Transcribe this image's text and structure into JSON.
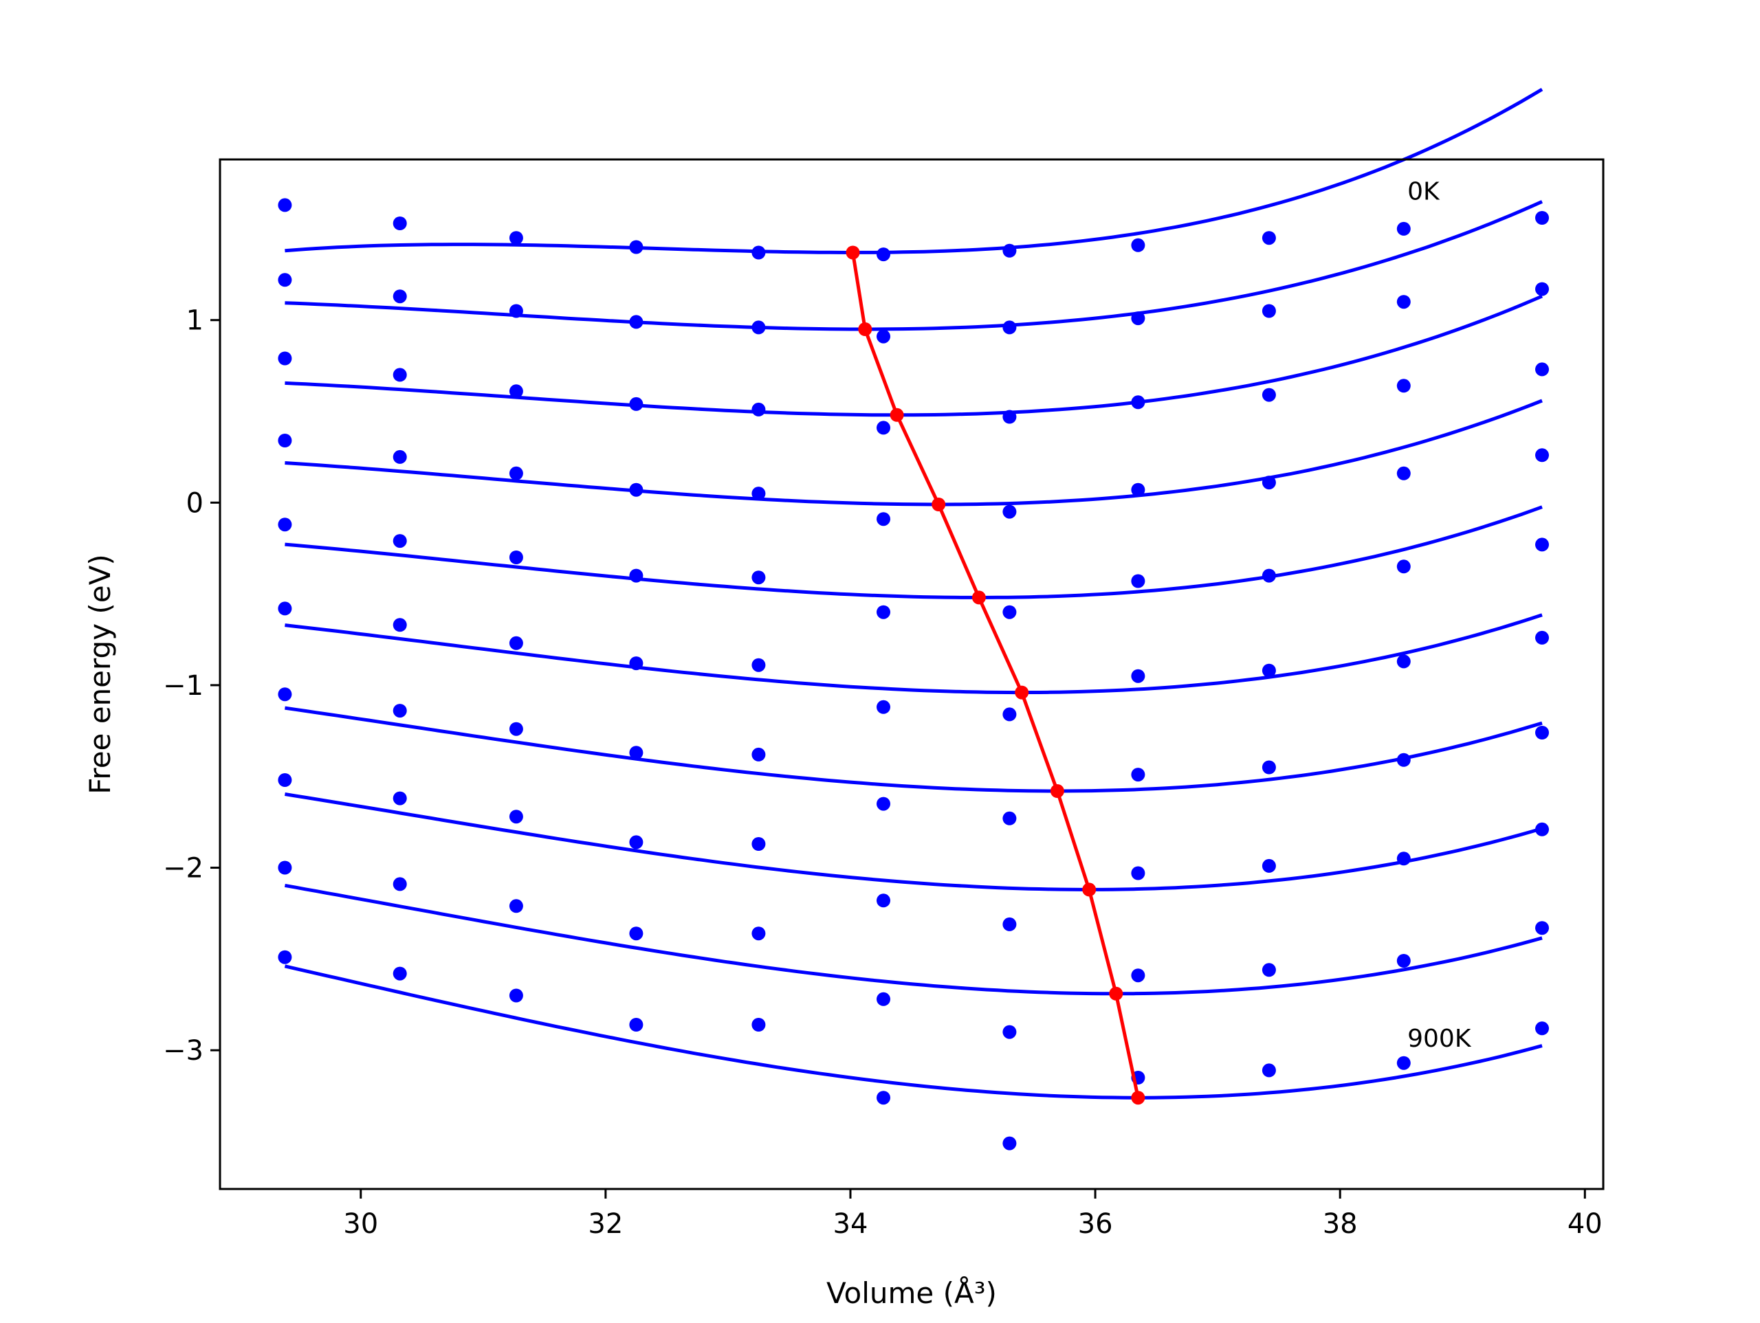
{
  "chart_data": {
    "type": "scatter",
    "xlabel": "Volume (Å³)",
    "ylabel": "Free energy (eV)",
    "xlim": [
      28.85,
      40.15
    ],
    "ylim": [
      -3.76,
      1.88
    ],
    "xticks": [
      30,
      32,
      34,
      36,
      38,
      40
    ],
    "yticks": [
      1,
      0,
      -1,
      -2,
      -3
    ],
    "xtick_labels": [
      "30",
      "32",
      "34",
      "36",
      "38",
      "40"
    ],
    "ytick_labels": [
      "1",
      "0",
      "−1",
      "−2",
      "−3"
    ],
    "grid": false,
    "annotations": [
      {
        "text": "0K",
        "x": 38.55,
        "y": 1.66
      },
      {
        "text": "900K",
        "x": 38.55,
        "y": -2.98
      }
    ],
    "colors": {
      "data": "#0000ff",
      "minimum": "#ff0000"
    },
    "x": [
      29.38,
      30.32,
      31.27,
      32.25,
      33.25,
      34.27,
      35.3,
      36.35,
      37.42,
      38.52,
      39.65
    ],
    "series": [
      {
        "values": [
          1.63,
          1.53,
          1.45,
          1.4,
          1.37,
          1.36,
          1.38,
          1.41,
          1.45,
          1.5,
          1.56
        ],
        "fit": {
          "vmin": 34.02,
          "emin": 1.37,
          "a": 0.013,
          "b": 0.0027
        }
      },
      {
        "values": [
          1.22,
          1.13,
          1.05,
          0.99,
          0.96,
          0.91,
          0.96,
          1.01,
          1.05,
          1.1,
          1.17
        ],
        "fit": {
          "vmin": 34.12,
          "emin": 0.95,
          "a": 0.014,
          "b": 0.0016
        }
      },
      {
        "values": [
          0.79,
          0.7,
          0.61,
          0.54,
          0.51,
          0.41,
          0.47,
          0.55,
          0.59,
          0.64,
          0.73
        ],
        "fit": {
          "vmin": 34.38,
          "emin": 0.48,
          "a": 0.015,
          "b": 0.0016
        }
      },
      {
        "values": [
          0.34,
          0.25,
          0.16,
          0.07,
          0.05,
          -0.09,
          -0.05,
          0.07,
          0.11,
          0.16,
          0.26
        ],
        "fit": {
          "vmin": 34.72,
          "emin": -0.01,
          "a": 0.016,
          "b": 0.0015
        }
      },
      {
        "values": [
          -0.12,
          -0.21,
          -0.3,
          -0.4,
          -0.41,
          -0.6,
          -0.6,
          -0.43,
          -0.4,
          -0.35,
          -0.23
        ],
        "fit": {
          "vmin": 35.05,
          "emin": -0.52,
          "a": 0.017,
          "b": 0.0014
        }
      },
      {
        "values": [
          -0.58,
          -0.67,
          -0.77,
          -0.88,
          -0.89,
          -1.12,
          -1.16,
          -0.95,
          -0.92,
          -0.87,
          -0.74
        ],
        "fit": {
          "vmin": 35.4,
          "emin": -1.04,
          "a": 0.018,
          "b": 0.0013
        }
      },
      {
        "values": [
          -1.05,
          -1.14,
          -1.24,
          -1.37,
          -1.38,
          -1.65,
          -1.73,
          -1.49,
          -1.45,
          -1.41,
          -1.26
        ],
        "fit": {
          "vmin": 35.69,
          "emin": -1.58,
          "a": 0.019,
          "b": 0.0012
        }
      },
      {
        "values": [
          -1.52,
          -1.62,
          -1.72,
          -1.86,
          -1.87,
          -2.18,
          -2.31,
          -2.03,
          -1.99,
          -1.95,
          -1.79
        ],
        "fit": {
          "vmin": 35.95,
          "emin": -2.12,
          "a": 0.02,
          "b": 0.0012
        }
      },
      {
        "values": [
          -2.0,
          -2.09,
          -2.21,
          -2.36,
          -2.36,
          -2.72,
          -2.9,
          -2.59,
          -2.56,
          -2.51,
          -2.33
        ],
        "fit": {
          "vmin": 36.17,
          "emin": -2.69,
          "a": 0.021,
          "b": 0.0012
        }
      },
      {
        "values": [
          -2.49,
          -2.58,
          -2.7,
          -2.86,
          -2.86,
          -3.26,
          -3.51,
          -3.15,
          -3.11,
          -3.07,
          -2.88
        ],
        "fit": {
          "vmin": 36.35,
          "emin": -3.26,
          "a": 0.0225,
          "b": 0.0011
        }
      }
    ]
  }
}
